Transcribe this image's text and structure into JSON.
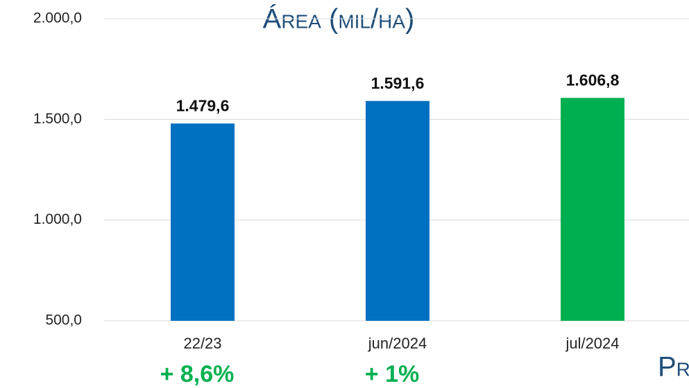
{
  "chart_data": {
    "type": "bar",
    "title": "Área (mil/ha)",
    "categories": [
      "22/23",
      "jun/2024",
      "jul/2024"
    ],
    "values": [
      1479.6,
      1591.6,
      1606.8
    ],
    "value_labels": [
      "1.479,6",
      "1.591,6",
      "1.606,8"
    ],
    "colors": [
      "#0070c0",
      "#0070c0",
      "#00b050"
    ],
    "change_labels": [
      "+ 8,6%",
      "+ 1%",
      null
    ],
    "ylim": [
      500,
      2000
    ],
    "yticks": [
      {
        "value": 500,
        "label": "500,0"
      },
      {
        "value": 1000,
        "label": "1.000,0"
      },
      {
        "value": 1500,
        "label": "1.500,0"
      },
      {
        "value": 2000,
        "label": "2.000,0"
      }
    ],
    "grid": true,
    "clipped_text": "Pr"
  }
}
